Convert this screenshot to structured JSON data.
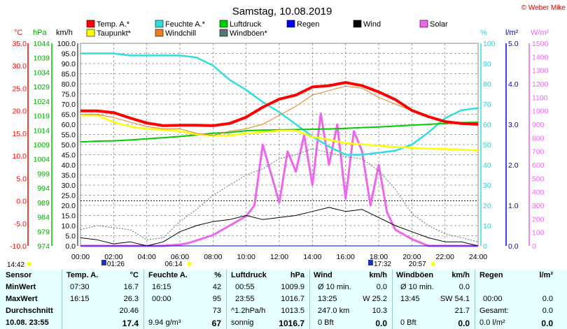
{
  "header": {
    "title": "Samstag, 10.08.2019",
    "copyright": "© Weber Mike"
  },
  "legend": [
    {
      "label": "Temp. A.*",
      "color": "#ff0000"
    },
    {
      "label": "Feuchte A.*",
      "color": "#33dddd"
    },
    {
      "label": "Luftdruck",
      "color": "#00cc00"
    },
    {
      "label": "Regen",
      "color": "#0000ff"
    },
    {
      "label": "Wind",
      "color": "#000000"
    },
    {
      "label": "Solar",
      "color": "#ee66ee"
    },
    {
      "label": "Taupunkt*",
      "color": "#ffff00"
    },
    {
      "label": "Windchill",
      "color": "#e88020"
    },
    {
      "label": "Windböen*",
      "color": "#557777"
    }
  ],
  "axes": {
    "temp_unit": "°C",
    "hpa_unit": "hPa",
    "kmh_unit": "km/h",
    "pct_unit": "%",
    "rain_unit": "l/m²",
    "solar_unit": "W/m²",
    "temp_ticks": [
      "35.0",
      "30.0",
      "25.0",
      "20.0",
      "15.0",
      "10.0",
      "5.0",
      "0.0",
      "-5.0",
      "-10.0"
    ],
    "hpa_ticks": [
      "1044",
      "1039",
      "1034",
      "1029",
      "1024",
      "1019",
      "1014",
      "1009",
      "1004",
      "999",
      "994",
      "989",
      "984",
      "979",
      "974"
    ],
    "kmh_ticks": [
      "100.0",
      "95.0",
      "90.0",
      "85.0",
      "80.0",
      "75.0",
      "70.0",
      "65.0",
      "60.0",
      "55.0",
      "50.0",
      "45.0",
      "40.0",
      "35.0",
      "30.0",
      "25.0",
      "20.0",
      "15.0",
      "10.0",
      "5.0",
      "0.0"
    ],
    "pct_ticks": [
      "100",
      "90",
      "80",
      "70",
      "60",
      "50",
      "40",
      "30",
      "20",
      "10",
      "0"
    ],
    "rain_ticks": [
      "5.0",
      "4.0",
      "3.0",
      "2.0",
      "1.0",
      "0.0"
    ],
    "solar_ticks": [
      "1500",
      "1400",
      "1300",
      "1200",
      "1100",
      "1000",
      "900",
      "800",
      "700",
      "600",
      "500",
      "400",
      "300",
      "200",
      "100",
      "0"
    ],
    "time_ticks": [
      "00:00",
      "02:00",
      "04:00",
      "06:00",
      "08:00",
      "10:00",
      "12:00",
      "14:00",
      "16:00",
      "18:00",
      "20:00",
      "22:00",
      "24:00"
    ]
  },
  "markers": {
    "start": "14:42",
    "moon_rise": "01:26",
    "sunrise": "06:14",
    "moon_set": "17:32",
    "sunset": "20:57"
  },
  "chart_data": {
    "type": "line",
    "title": "Samstag, 10.08.2019",
    "x_unit": "hours",
    "xlim": [
      0,
      24
    ],
    "series": [
      {
        "name": "Temp. A.*",
        "axis": "°C",
        "x": [
          0,
          1,
          2,
          3,
          4,
          5,
          6,
          7,
          8,
          9,
          10,
          11,
          12,
          13,
          14,
          15,
          16,
          17,
          18,
          19,
          20,
          21,
          22,
          23,
          24
        ],
        "values": [
          20.0,
          20.0,
          19.6,
          18.4,
          17.3,
          16.7,
          16.8,
          16.8,
          16.7,
          17.2,
          18.6,
          20.8,
          22.6,
          23.5,
          25.3,
          25.6,
          26.3,
          25.6,
          24.2,
          22.5,
          20.1,
          18.7,
          17.6,
          17.2,
          17.0
        ]
      },
      {
        "name": "Taupunkt*",
        "axis": "°C",
        "x": [
          0,
          1,
          2,
          3,
          4,
          5,
          6,
          7,
          8,
          9,
          10,
          11,
          12,
          13,
          14,
          15,
          16,
          17,
          18,
          19,
          20,
          21,
          22,
          23,
          24
        ],
        "values": [
          19.0,
          19.0,
          17.5,
          16.5,
          16.0,
          15.8,
          15.5,
          14.8,
          14.5,
          14.5,
          15.0,
          15.3,
          15.6,
          15.6,
          14.2,
          13.6,
          12.8,
          12.6,
          12.2,
          12.0,
          11.8,
          11.6,
          11.5,
          11.4,
          11.2
        ]
      },
      {
        "name": "Windchill",
        "axis": "°C",
        "x": [
          0,
          1,
          2,
          3,
          4,
          5,
          6,
          7,
          8,
          9,
          10,
          11,
          12,
          13,
          14,
          15,
          16,
          17,
          18,
          19,
          20,
          21,
          22,
          23,
          24
        ],
        "values": [
          19.2,
          19.2,
          18.5,
          17.5,
          16.5,
          16.0,
          16.0,
          15.0,
          14.5,
          15.5,
          16.0,
          17.0,
          19.0,
          21.0,
          23.5,
          24.5,
          25.5,
          25.0,
          23.0,
          21.5,
          20.0,
          18.7,
          17.6,
          17.2,
          17.0
        ]
      },
      {
        "name": "Luftdruck",
        "axis": "hPa",
        "x": [
          0,
          1,
          2,
          3,
          4,
          5,
          6,
          7,
          8,
          9,
          10,
          11,
          12,
          13,
          14,
          15,
          16,
          17,
          18,
          19,
          20,
          21,
          22,
          23,
          24
        ],
        "values": [
          1009.9,
          1010.2,
          1010.3,
          1010.6,
          1011.0,
          1011.4,
          1011.8,
          1012.3,
          1012.9,
          1013.2,
          1013.8,
          1014.0,
          1014.1,
          1014.2,
          1014.3,
          1014.4,
          1014.6,
          1014.9,
          1015.1,
          1015.4,
          1015.7,
          1016.0,
          1016.3,
          1016.6,
          1016.7
        ]
      },
      {
        "name": "Feuchte A.*",
        "axis": "%",
        "x": [
          0,
          1,
          2,
          3,
          4,
          5,
          6,
          7,
          8,
          9,
          10,
          11,
          12,
          13,
          14,
          15,
          16,
          17,
          18,
          19,
          20,
          21,
          22,
          23,
          24
        ],
        "values": [
          95,
          95,
          95,
          94,
          94,
          94,
          94,
          93,
          89,
          82,
          77,
          71,
          66,
          60,
          54,
          49,
          45,
          45,
          46,
          47,
          50,
          56,
          63,
          67,
          68
        ]
      },
      {
        "name": "Wind",
        "axis": "km/h",
        "x": [
          0,
          1,
          2,
          3,
          4,
          5,
          6,
          7,
          8,
          9,
          10,
          11,
          12,
          13,
          14,
          15,
          16,
          17,
          18,
          19,
          20,
          21,
          22,
          23,
          24
        ],
        "values": [
          4,
          3,
          1,
          2,
          0,
          2,
          7,
          10,
          12,
          13,
          15,
          13,
          14,
          15,
          17,
          19,
          17,
          18,
          14,
          10,
          7,
          4,
          2,
          2,
          0
        ]
      },
      {
        "name": "Windböen*",
        "axis": "km/h",
        "x": [
          0,
          1,
          2,
          3,
          4,
          5,
          6,
          7,
          8,
          9,
          10,
          11,
          12,
          13,
          14,
          15,
          16,
          17,
          18,
          19,
          20,
          21,
          22,
          23,
          24
        ],
        "values": [
          8,
          10,
          9,
          8,
          3,
          4,
          12,
          18,
          25,
          30,
          35,
          38,
          43,
          45,
          48,
          46,
          44,
          43,
          37,
          28,
          16,
          10,
          6,
          4,
          2
        ]
      },
      {
        "name": "Solar",
        "axis": "W/m²",
        "x": [
          0,
          5,
          6,
          6.5,
          7,
          8,
          9,
          10,
          10.5,
          11,
          12,
          12.5,
          13,
          13.5,
          14,
          14.5,
          15,
          15.5,
          16,
          16.5,
          17,
          17.5,
          18,
          18.5,
          19,
          20,
          21,
          24
        ],
        "values": [
          0,
          0,
          10,
          20,
          40,
          80,
          150,
          220,
          300,
          750,
          320,
          700,
          550,
          820,
          450,
          980,
          600,
          900,
          350,
          850,
          700,
          300,
          600,
          250,
          120,
          50,
          0,
          0
        ]
      },
      {
        "name": "Regen",
        "axis": "l/m²",
        "x": [
          0,
          24
        ],
        "values": [
          0,
          0
        ]
      }
    ],
    "ylim": {
      "°C": [
        -10,
        35
      ],
      "hPa": [
        974,
        1044
      ],
      "km/h": [
        0,
        100
      ],
      "%": [
        0,
        100
      ],
      "l/m²": [
        0,
        5
      ],
      "W/m²": [
        0,
        1500
      ]
    }
  },
  "stats": {
    "headers": {
      "sensor": "Sensor",
      "temp": "Temp. A.",
      "temp_u": "°C",
      "feuchte": "Feuchte A.",
      "feuchte_u": "%",
      "luft": "Luftdruck",
      "luft_u": "hPa",
      "wind": "Wind",
      "wind_u": "km/h",
      "boeen": "Windböen",
      "boeen_u": "km/h",
      "regen": "Regen",
      "regen_u": "l/m²"
    },
    "min": {
      "label": "MinWert",
      "temp_time": "07:30",
      "temp_val": "16.7",
      "feuchte_time": "16:15",
      "feuchte_val": "42",
      "luft_time": "00:55",
      "luft_val": "1009.9",
      "wind_a": "Ø 10 min.",
      "wind_b": "0.0",
      "boeen_a": "Ø 10 min.",
      "boeen_b": "0.0"
    },
    "max": {
      "label": "MaxWert",
      "temp_time": "16:15",
      "temp_val": "26.3",
      "feuchte_time": "00:00",
      "feuchte_val": "95",
      "luft_time": "23:55",
      "luft_val": "1016.7",
      "wind_time": "13:25",
      "wind_val": "W 25.2",
      "boeen_time": "13:45",
      "boeen_val": "SW 54.1",
      "regen_time": "00:00",
      "regen_val": "0.0"
    },
    "avg": {
      "label": "Durchschnitt",
      "temp_val": "20.46",
      "feuchte_val": "73",
      "luft_note": "^1.2hPa/h",
      "luft_val": "1013.5",
      "wind_km": "247.0 km",
      "wind_val": "10.3",
      "boeen_val": "21.7",
      "regen_label": "Gesamt:",
      "regen_val": "0.0"
    },
    "cur": {
      "label": "10.08. 23:55",
      "temp_val": "17.4",
      "feuchte_dew": "9.94 g/m³",
      "feuchte_val": "67",
      "luft_note": "sonnig",
      "luft_val": "1016.7",
      "wind_bft": "0 Bft",
      "wind_val": "0.0",
      "boeen_bft": "0 Bft",
      "boeen_val": "0.0",
      "regen_rate": "0.0 l/m²",
      "regen_val": "0.0"
    }
  }
}
